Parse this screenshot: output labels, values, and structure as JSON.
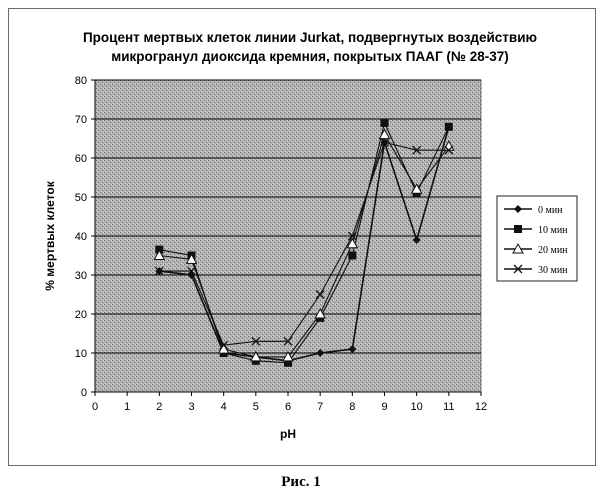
{
  "figure": {
    "caption": "Рис. 1"
  },
  "chart_data": {
    "type": "line",
    "title_lines": [
      "Процент мертвых клеток линии Jurkat, подвергнутых воздействию",
      "микрогранул диоксида кремния, покрытых ПААГ (№ 28-37)"
    ],
    "xlabel": "pH",
    "ylabel": "% мертвых клеток",
    "xlim": [
      0,
      12
    ],
    "ylim": [
      0,
      80
    ],
    "x_ticks": [
      "0",
      "1",
      "2",
      "3",
      "4",
      "5",
      "6",
      "7",
      "8",
      "9",
      "10",
      "11",
      "12"
    ],
    "y_ticks": [
      "0",
      "10",
      "20",
      "30",
      "40",
      "50",
      "60",
      "70",
      "80"
    ],
    "grid": "horizontal",
    "legend_position": "right",
    "x": [
      2,
      3,
      4,
      5,
      6,
      7,
      8,
      9,
      10,
      11
    ],
    "series": [
      {
        "name": "0 мин",
        "marker": "diamond",
        "values": [
          31,
          30,
          10,
          9,
          8,
          10,
          11,
          64,
          39,
          68
        ]
      },
      {
        "name": "10 мин",
        "marker": "square",
        "values": [
          36.5,
          35,
          10,
          8,
          7.5,
          19,
          35,
          69,
          51,
          68
        ]
      },
      {
        "name": "20 мин",
        "marker": "triangle",
        "values": [
          35,
          34,
          11,
          9,
          9,
          20,
          38,
          66,
          52,
          63
        ]
      },
      {
        "name": "30 мин",
        "marker": "x",
        "values": [
          31,
          31,
          12,
          13,
          13,
          25,
          40,
          64,
          62,
          62
        ]
      }
    ],
    "colors": {
      "series": "#111111",
      "plot_fill": "#a9a9a9",
      "grid": "#000000"
    }
  }
}
